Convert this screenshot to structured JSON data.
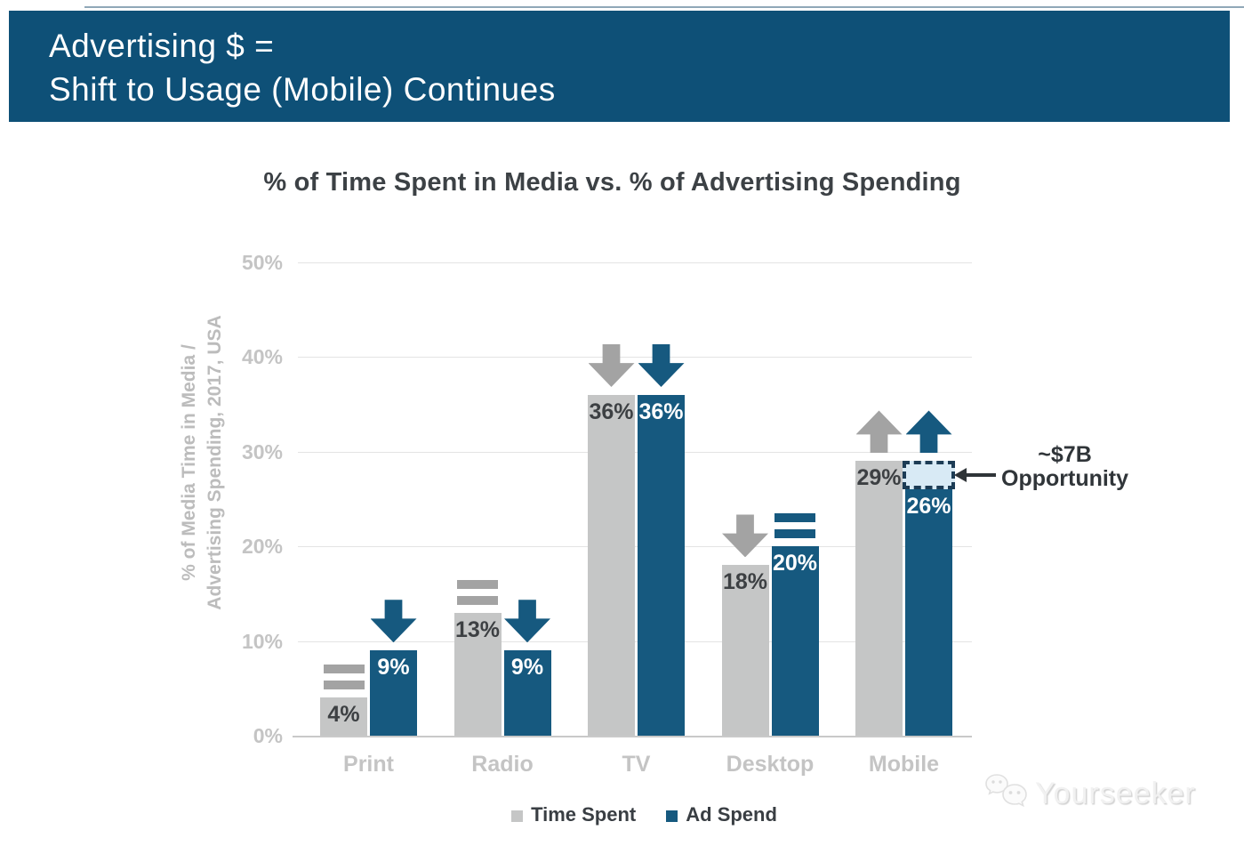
{
  "banner": {
    "line1": "Advertising $ =",
    "line2": "Shift to Usage (Mobile) Continues",
    "bg_color": "#0E5077",
    "text_color": "#FFFFFF"
  },
  "chart_data": {
    "type": "bar",
    "title": "% of Time Spent in Media vs. % of Advertising Spending",
    "ylabel_line1": "% of Media Time in Media /",
    "ylabel_line2": "Advertising Spending, 2017, USA",
    "categories": [
      "Print",
      "Radio",
      "TV",
      "Desktop",
      "Mobile"
    ],
    "series": [
      {
        "name": "Time Spent",
        "color": "#C5C6C6",
        "label_color": "#3D4043",
        "indicator_color": "#A3A3A3",
        "values": [
          4,
          13,
          36,
          18,
          29
        ],
        "trend": [
          "equal",
          "equal",
          "down",
          "down",
          "up"
        ]
      },
      {
        "name": "Ad Spend",
        "color": "#16597F",
        "label_color": "#FFFFFF",
        "indicator_color": "#16597F",
        "values": [
          9,
          9,
          36,
          20,
          26
        ],
        "trend": [
          "down",
          "down",
          "down",
          "equal",
          "up"
        ]
      }
    ],
    "unit": "%",
    "ylim": [
      0,
      50
    ],
    "ytick_values": [
      0,
      10,
      20,
      30,
      40,
      50
    ],
    "ytick_labels": [
      "0%",
      "10%",
      "20%",
      "30%",
      "40%",
      "50%"
    ],
    "grid": true,
    "legend_position": "bottom",
    "annotation": {
      "line1": "~$7B",
      "line2": "Opportunity",
      "category": "Mobile",
      "series": "Ad Spend",
      "box_from": 26,
      "box_to": 29,
      "box_fill": "#D8EAF5",
      "box_border": "#1C3C55"
    }
  },
  "watermark": {
    "text": "Yourseeker"
  }
}
